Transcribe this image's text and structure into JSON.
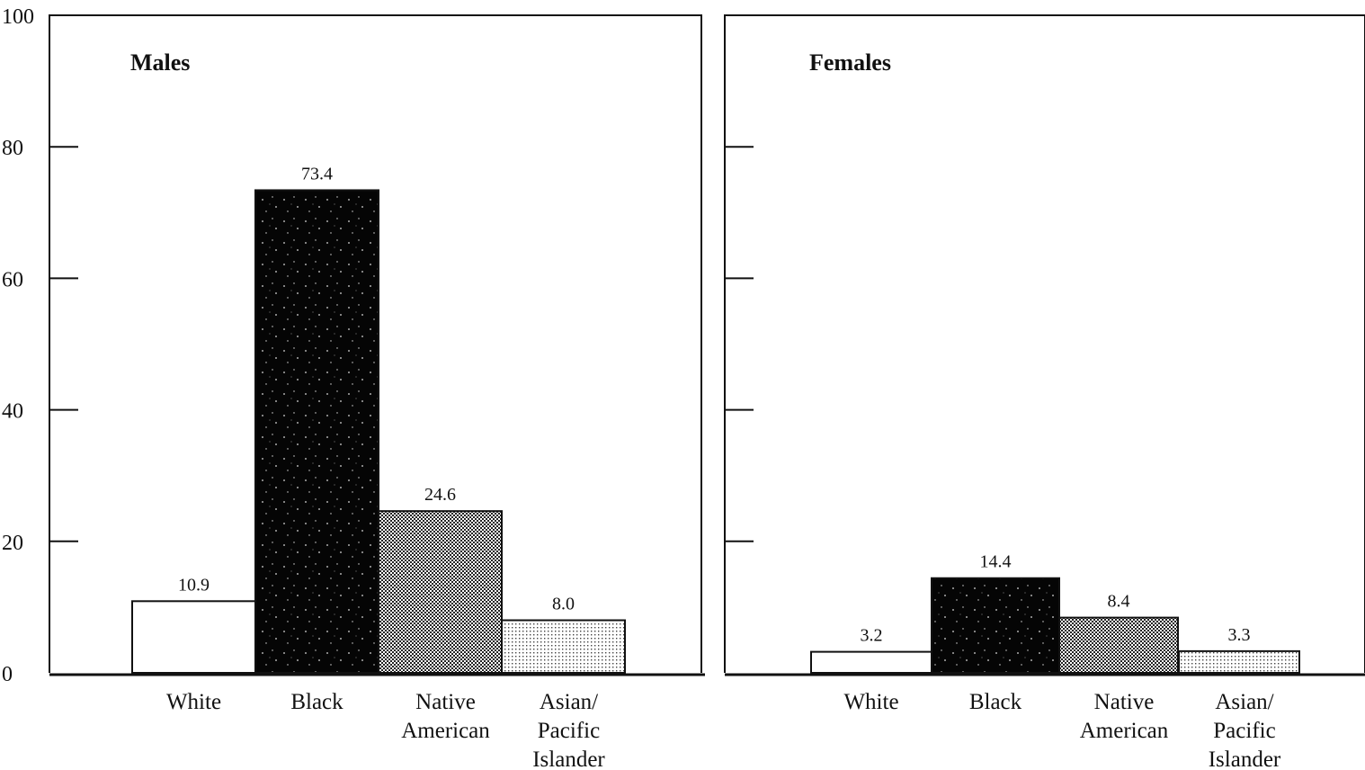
{
  "chart_data": [
    {
      "type": "bar",
      "title": "Males",
      "categories": [
        [
          "White"
        ],
        [
          "Black"
        ],
        [
          "Native",
          "American"
        ],
        [
          "Asian/",
          "Pacific",
          "Islander"
        ]
      ],
      "values": [
        10.9,
        73.4,
        24.6,
        8.0
      ],
      "data_labels": [
        "10.9",
        "73.4",
        "24.6",
        "8.0"
      ],
      "ylim": [
        0,
        100
      ],
      "yticks": [
        0,
        20,
        40,
        60,
        80,
        100
      ],
      "ytick_labels": [
        "0",
        "20",
        "40",
        "60",
        "80",
        "100"
      ],
      "xlabel": "",
      "ylabel": "",
      "grid": false,
      "legend": "none"
    },
    {
      "type": "bar",
      "title": "Females",
      "categories": [
        [
          "White"
        ],
        [
          "Black"
        ],
        [
          "Native",
          "American"
        ],
        [
          "Asian/",
          "Pacific",
          "Islander"
        ]
      ],
      "values": [
        3.2,
        14.4,
        8.4,
        3.3
      ],
      "data_labels": [
        "3.2",
        "14.4",
        "8.4",
        "3.3"
      ],
      "ylim": [
        0,
        100
      ],
      "yticks": [
        0,
        20,
        40,
        60,
        80,
        100
      ],
      "ytick_labels": [],
      "xlabel": "",
      "ylabel": "",
      "grid": false,
      "legend": "none"
    }
  ],
  "bar_fills": [
    "white",
    "black",
    "dense-dots",
    "light-dots"
  ],
  "colors": {
    "ink": "#111111",
    "paper": "#ffffff"
  }
}
